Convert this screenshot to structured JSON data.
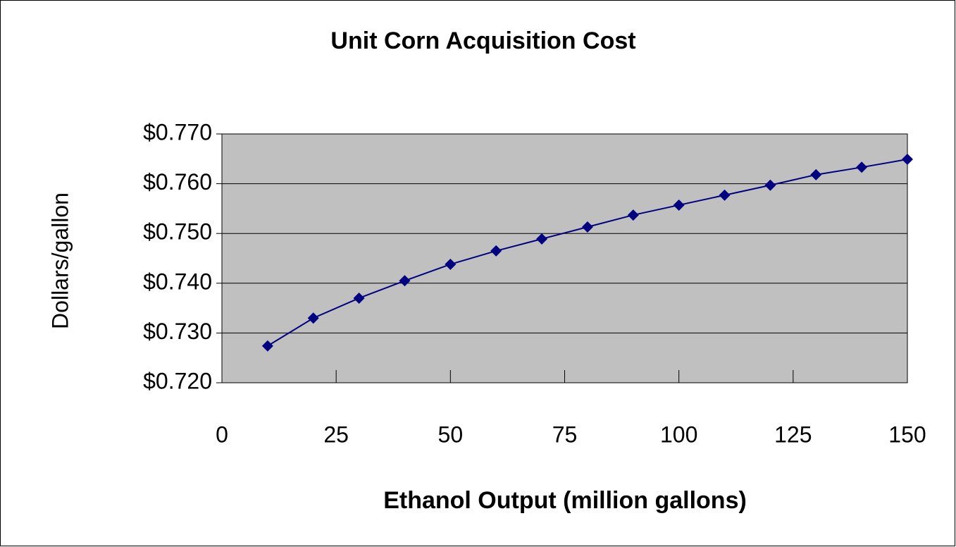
{
  "chart_data": {
    "type": "line",
    "title": "Unit Corn Acquisition Cost",
    "x_label": "Ethanol Output (million gallons)",
    "y_label": "Dollars/gallon",
    "series": [
      {
        "name": "Unit Corn Acquisition Cost",
        "color": "#000080",
        "x": [
          10,
          20,
          30,
          40,
          50,
          60,
          70,
          80,
          90,
          100,
          110,
          120,
          130,
          140,
          150
        ],
        "values": [
          0.7274,
          0.733,
          0.737,
          0.7405,
          0.7438,
          0.7465,
          0.7489,
          0.7513,
          0.7537,
          0.7557,
          0.7577,
          0.7597,
          0.7618,
          0.7633,
          0.7649
        ]
      }
    ],
    "xlim": [
      0,
      150
    ],
    "xticks": [
      0,
      25,
      50,
      75,
      100,
      125,
      150
    ],
    "ylim": [
      0.72,
      0.77
    ],
    "yticks": [
      {
        "value": 0.72,
        "label": "$0.720"
      },
      {
        "value": 0.73,
        "label": "$0.730"
      },
      {
        "value": 0.74,
        "label": "$0.740"
      },
      {
        "value": 0.75,
        "label": "$0.750"
      },
      {
        "value": 0.76,
        "label": "$0.760"
      },
      {
        "value": 0.77,
        "label": "$0.770"
      }
    ],
    "grid": true,
    "plot_background": "#c0c0c0"
  }
}
